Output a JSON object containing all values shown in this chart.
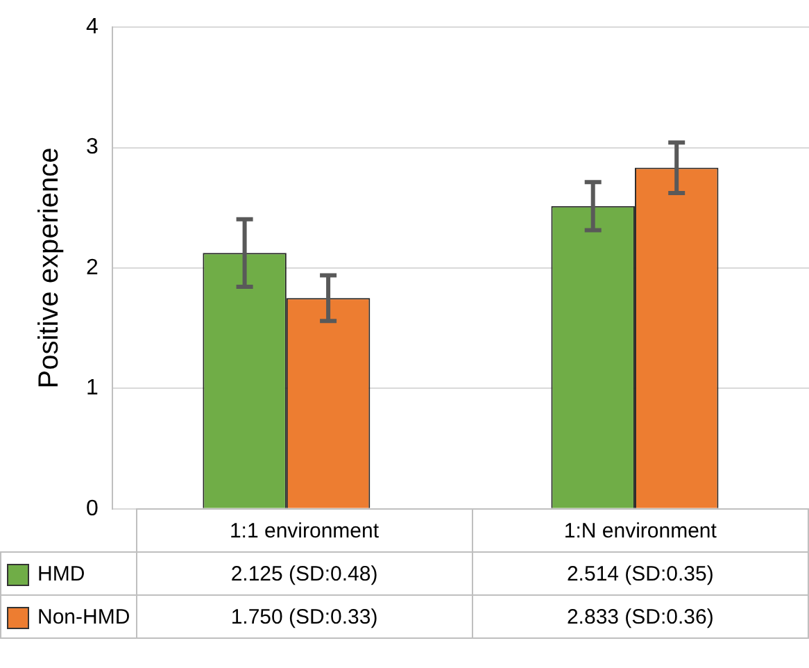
{
  "chart_data": {
    "type": "bar",
    "ylabel": "Positive experience",
    "categories": [
      "1:1 environment",
      "1:N environment"
    ],
    "series": [
      {
        "name": "HMD",
        "color": "#70ad47",
        "values": [
          2.125,
          2.514
        ],
        "errors": [
          0.28,
          0.2
        ],
        "value_labels": [
          "2.125 (SD:0.48)",
          "2.514 (SD:0.35)"
        ]
      },
      {
        "name": "Non-HMD",
        "color": "#ed7d31",
        "values": [
          1.75,
          2.833
        ],
        "errors": [
          0.19,
          0.21
        ],
        "value_labels": [
          "1.750 (SD:0.33)",
          "2.833 (SD:0.36)"
        ]
      }
    ],
    "ylim": [
      0,
      4
    ],
    "yticks": [
      0,
      1,
      2,
      3,
      4
    ],
    "grid": "y",
    "legend": "bottom"
  }
}
